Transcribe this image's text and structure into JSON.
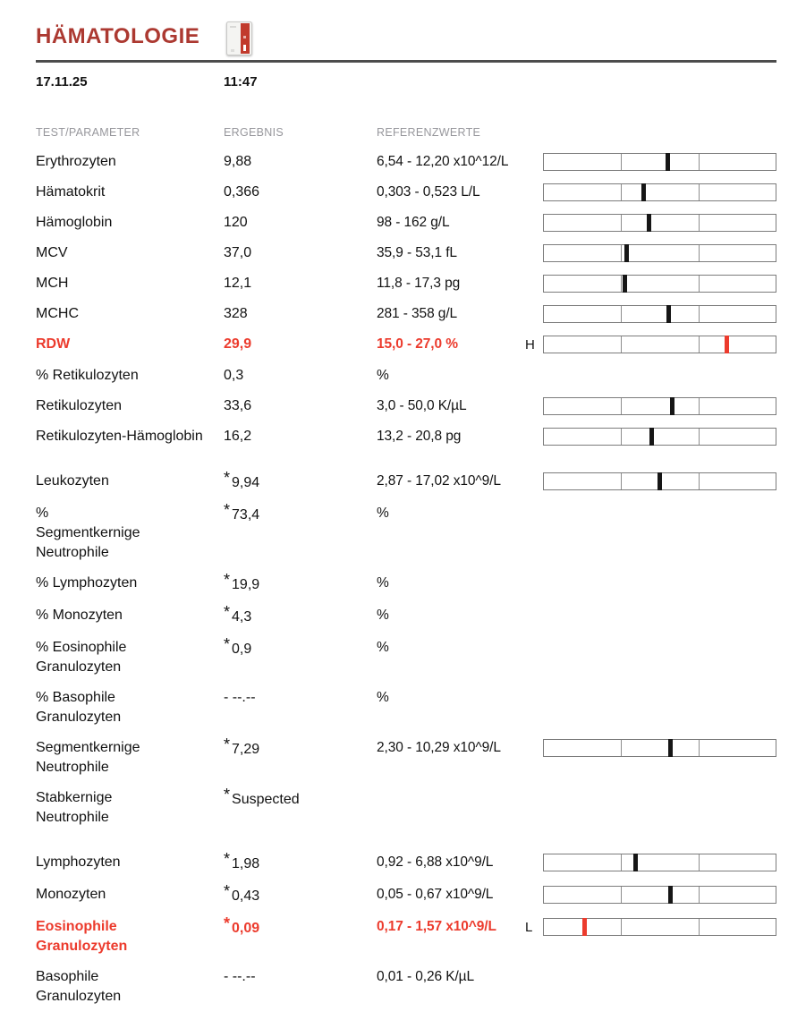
{
  "header": {
    "title": "HÄMATOLOGIE",
    "icon": "analyzer-icon",
    "date": "17.11.25",
    "time": "11:47"
  },
  "columns": {
    "parameter": "TEST/PARAMETER",
    "result": "ERGEBNIS",
    "reference": "REFERENZWERTE"
  },
  "symbols": {
    "star": "*"
  },
  "colors": {
    "title_red": "#AC3931",
    "alert_red": "#EC3B2D",
    "text": "#121212",
    "muted": "#97979C",
    "rule_gray": "#4C4C4C",
    "bar_border": "#7C7C7C",
    "marker_black": "#161616"
  },
  "rows": [
    {
      "parameter": "Erythrozyten",
      "result": "9,88",
      "starred": false,
      "alert": false,
      "reference": "6,54 - 12,20 x10^12/L",
      "flag": "",
      "bar": {
        "pos": 0.535,
        "alert": false
      }
    },
    {
      "parameter": "Hämatokrit",
      "result": "0,366",
      "starred": false,
      "alert": false,
      "reference": "0,303 - 0,523 L/L",
      "flag": "",
      "bar": {
        "pos": 0.43,
        "alert": false
      }
    },
    {
      "parameter": "Hämoglobin",
      "result": "120",
      "starred": false,
      "alert": false,
      "reference": "98 - 162 g/L",
      "flag": "",
      "bar": {
        "pos": 0.452,
        "alert": false
      }
    },
    {
      "parameter": "MCV",
      "result": "37,0",
      "starred": false,
      "alert": false,
      "reference": "35,9 - 53,1 fL",
      "flag": "",
      "bar": {
        "pos": 0.358,
        "alert": false
      }
    },
    {
      "parameter": "MCH",
      "result": "12,1",
      "starred": false,
      "alert": false,
      "reference": "11,8 - 17,3 pg",
      "flag": "",
      "bar": {
        "pos": 0.35,
        "alert": false
      }
    },
    {
      "parameter": "MCHC",
      "result": "328",
      "starred": false,
      "alert": false,
      "reference": "281 - 358 g/L",
      "flag": "",
      "bar": {
        "pos": 0.54,
        "alert": false
      }
    },
    {
      "parameter": "RDW",
      "result": "29,9",
      "starred": false,
      "alert": true,
      "reference": "15,0 - 27,0 %",
      "flag": "H",
      "bar": {
        "pos": 0.79,
        "alert": true
      }
    },
    {
      "parameter": "% Retikulozyten",
      "result": "0,3",
      "starred": false,
      "alert": false,
      "reference": "%",
      "flag": "",
      "bar": null
    },
    {
      "parameter": "Retikulozyten",
      "result": "33,6",
      "starred": false,
      "alert": false,
      "reference": "3,0 - 50,0 K/µL",
      "flag": "",
      "bar": {
        "pos": 0.553,
        "alert": false
      }
    },
    {
      "parameter": "Retikulozyten-Hämoglobin",
      "result": "16,2",
      "starred": false,
      "alert": false,
      "reference": "13,2 - 20,8 pg",
      "flag": "",
      "bar": {
        "pos": 0.465,
        "alert": false
      }
    },
    {
      "parameter": "Leukozyten",
      "result": "9,94",
      "starred": true,
      "alert": false,
      "reference": "2,87 - 17,02 x10^9/L",
      "flag": "",
      "bar": {
        "pos": 0.499,
        "alert": false
      },
      "section_break": true
    },
    {
      "parameter": "%\nSegmentkernige\nNeutrophile",
      "result": "73,4",
      "starred": true,
      "alert": false,
      "reference": "%",
      "flag": "",
      "bar": null
    },
    {
      "parameter": "% Lymphozyten",
      "result": "19,9",
      "starred": true,
      "alert": false,
      "reference": "%",
      "flag": "",
      "bar": null
    },
    {
      "parameter": "% Monozyten",
      "result": "4,3",
      "starred": true,
      "alert": false,
      "reference": "%",
      "flag": "",
      "bar": null
    },
    {
      "parameter": "% Eosinophile\nGranulozyten",
      "result": "0,9",
      "starred": true,
      "alert": false,
      "reference": "%",
      "flag": "",
      "bar": null
    },
    {
      "parameter": "% Basophile\nGranulozyten",
      "result": "- --.--",
      "starred": false,
      "alert": false,
      "reference": "%",
      "flag": "",
      "bar": null
    },
    {
      "parameter": "Segmentkernige\nNeutrophile",
      "result": "7,29",
      "starred": true,
      "alert": false,
      "reference": "2,30 - 10,29 x10^9/L",
      "flag": "",
      "bar": {
        "pos": 0.548,
        "alert": false
      }
    },
    {
      "parameter": "Stabkernige\nNeutrophile",
      "result": "Suspected",
      "starred": true,
      "alert": false,
      "reference": "",
      "flag": "",
      "bar": null
    },
    {
      "parameter": "Lymphozyten",
      "result": "1,98",
      "starred": true,
      "alert": false,
      "reference": "0,92 - 6,88 x10^9/L",
      "flag": "",
      "bar": {
        "pos": 0.395,
        "alert": false
      },
      "section_break": true
    },
    {
      "parameter": "Monozyten",
      "result": "0,43",
      "starred": true,
      "alert": false,
      "reference": "0,05 - 0,67 x10^9/L",
      "flag": "",
      "bar": {
        "pos": 0.545,
        "alert": false
      }
    },
    {
      "parameter": "Eosinophile\nGranulozyten",
      "result": "0,09",
      "starred": true,
      "alert": true,
      "reference": "0,17 - 1,57 x10^9/L",
      "flag": "L",
      "bar": {
        "pos": 0.175,
        "alert": true
      }
    },
    {
      "parameter": "Basophile\nGranulozyten",
      "result": "- --.--",
      "starred": false,
      "alert": false,
      "reference": "0,01 - 0,26 K/µL",
      "flag": "",
      "bar": null
    }
  ]
}
